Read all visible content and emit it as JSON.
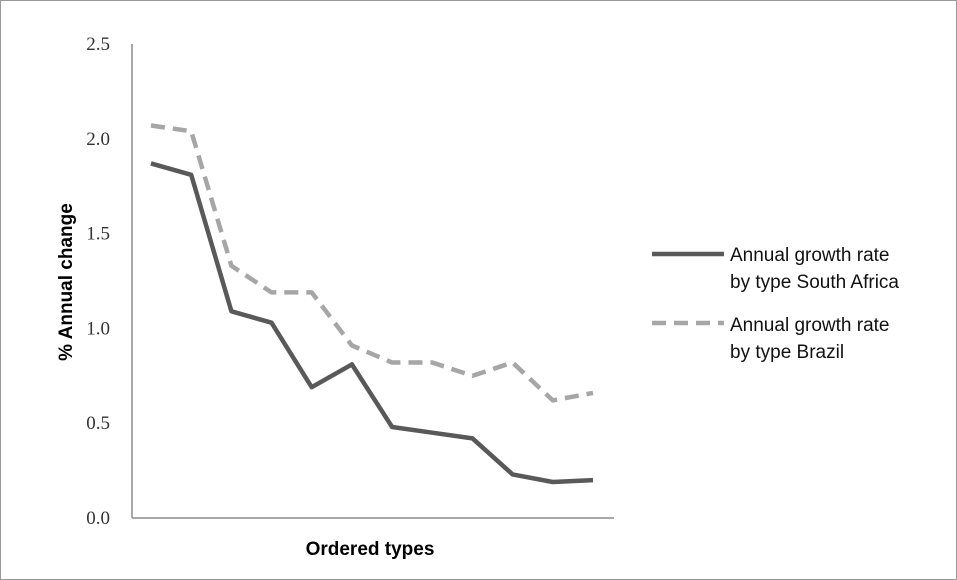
{
  "chart_data": {
    "type": "line",
    "xlabel": "Ordered types",
    "ylabel": "% Annual change",
    "ylim": [
      0,
      2.5
    ],
    "yticks": [
      "0.0",
      "0.5",
      "1.0",
      "1.5",
      "2.0",
      "2.5"
    ],
    "grid": false,
    "legend_position": "right",
    "x": [
      1,
      2,
      3,
      4,
      5,
      6,
      7,
      8,
      9,
      10,
      11,
      12
    ],
    "series": [
      {
        "legend": [
          "Annual growth rate",
          "by type South Africa"
        ],
        "color": "#595959",
        "dash": "solid",
        "values": [
          1.87,
          1.81,
          1.09,
          1.03,
          0.69,
          0.81,
          0.48,
          0.45,
          0.42,
          0.23,
          0.19,
          0.2
        ]
      },
      {
        "legend": [
          "Annual growth rate",
          "by type Brazil"
        ],
        "color": "#a6a6a6",
        "dash": "dashed",
        "values": [
          2.07,
          2.04,
          1.33,
          1.19,
          1.19,
          0.91,
          0.82,
          0.82,
          0.75,
          0.82,
          0.62,
          0.66
        ]
      }
    ]
  }
}
